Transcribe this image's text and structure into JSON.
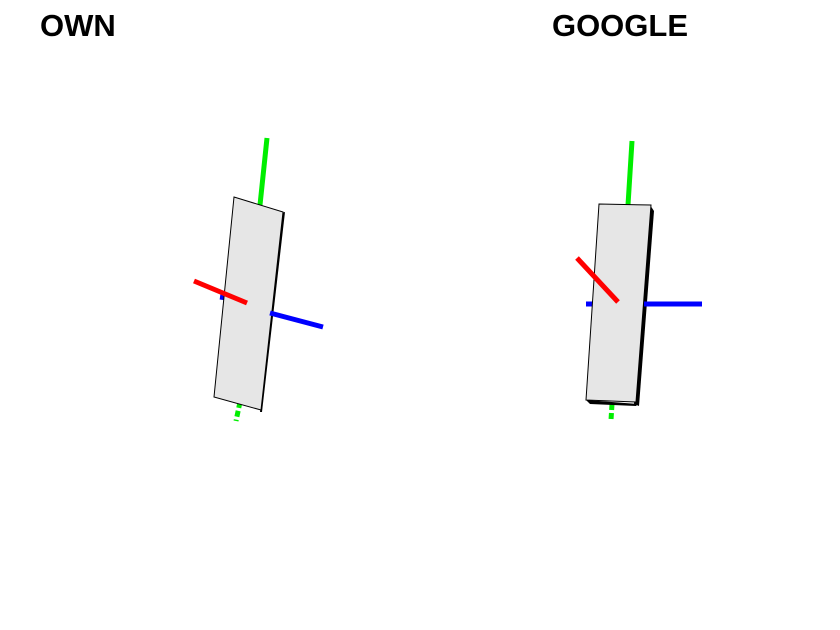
{
  "panels": [
    {
      "title": "OWN",
      "colors": {
        "x_axis": "#ff0000",
        "y_axis": "#00ee00",
        "z_axis": "#0000ff",
        "box_face": "#e6e6e6",
        "box_side": "#000000"
      }
    },
    {
      "title": "GOOGLE",
      "colors": {
        "x_axis": "#ff0000",
        "y_axis": "#00ee00",
        "z_axis": "#0000ff",
        "box_face": "#e6e6e6",
        "box_side": "#000000"
      }
    }
  ]
}
